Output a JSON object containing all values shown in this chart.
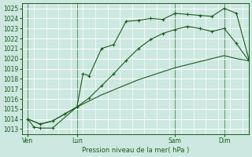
{
  "title": "Pression niveau de la mer( hPa )",
  "background_color": "#cce8e0",
  "grid_color": "#ffffff",
  "line_color": "#1a5c1a",
  "ylim": [
    1012.5,
    1025.5
  ],
  "yticks": [
    1013,
    1014,
    1015,
    1016,
    1017,
    1018,
    1019,
    1020,
    1021,
    1022,
    1023,
    1024,
    1025
  ],
  "xtick_labels": [
    "Ven",
    "Lun",
    "Sam",
    "Dim"
  ],
  "xtick_positions": [
    1,
    9,
    25,
    33
  ],
  "xlim": [
    0,
    37
  ],
  "vline_positions": [
    1,
    9,
    25,
    33
  ],
  "series1_x": [
    1,
    2,
    3,
    5,
    9,
    10,
    11,
    13,
    15,
    17,
    19,
    21,
    23,
    25,
    25,
    27,
    29,
    31,
    33,
    35,
    37
  ],
  "series1_y": [
    1014.0,
    1013.2,
    1013.1,
    1013.1,
    1015.2,
    1018.5,
    1018.3,
    1021.0,
    1021.4,
    1023.7,
    1023.8,
    1024.0,
    1023.9,
    1024.5,
    1024.5,
    1024.4,
    1024.3,
    1024.2,
    1025.0,
    1024.5,
    1020.0
  ],
  "series2_x": [
    1,
    3,
    5,
    7,
    9,
    11,
    13,
    15,
    17,
    19,
    21,
    23,
    25,
    27,
    29,
    31,
    33,
    35,
    37
  ],
  "series2_y": [
    1014.0,
    1013.5,
    1013.8,
    1014.5,
    1015.2,
    1015.8,
    1016.4,
    1016.9,
    1017.4,
    1017.9,
    1018.3,
    1018.7,
    1019.1,
    1019.4,
    1019.7,
    1020.0,
    1020.3,
    1020.0,
    1019.8
  ],
  "series3_x": [
    1,
    3,
    5,
    7,
    9,
    11,
    13,
    15,
    17,
    19,
    21,
    23,
    25,
    27,
    29,
    31,
    33,
    35,
    37
  ],
  "series3_y": [
    1014.0,
    1013.5,
    1013.8,
    1014.5,
    1015.2,
    1016.1,
    1017.3,
    1018.5,
    1019.8,
    1021.0,
    1021.9,
    1022.5,
    1022.9,
    1023.2,
    1023.0,
    1022.7,
    1023.0,
    1021.5,
    1019.8
  ]
}
